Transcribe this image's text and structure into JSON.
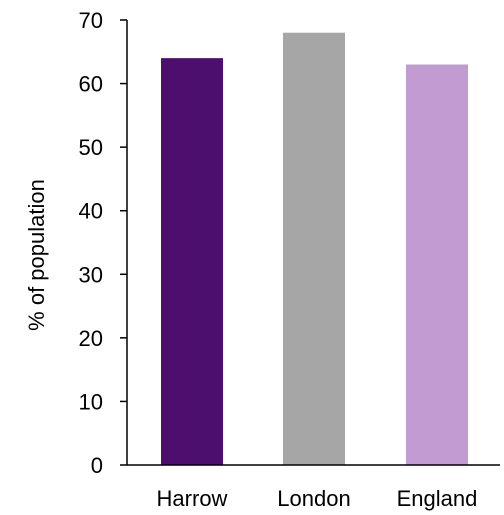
{
  "chart_data": {
    "type": "bar",
    "title": "",
    "xlabel": "",
    "ylabel": "% of population",
    "categories": [
      "Harrow",
      "London",
      "England"
    ],
    "values": [
      64,
      68,
      63
    ],
    "colors": [
      "#4c0f6e",
      "#a6a6a6",
      "#c39bd3"
    ],
    "ylim": [
      0,
      70
    ],
    "yticks": [
      0,
      10,
      20,
      30,
      40,
      50,
      60,
      70
    ],
    "grid": false,
    "legend": "none"
  }
}
